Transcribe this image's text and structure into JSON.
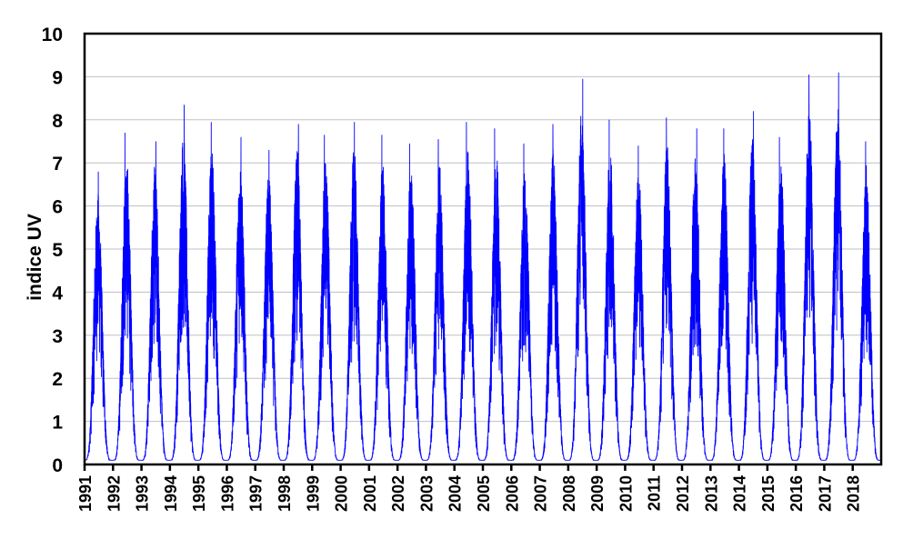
{
  "chart_data": {
    "type": "line",
    "title": "",
    "xlabel": "",
    "ylabel": "indice UV",
    "ylim": [
      0,
      10
    ],
    "xlim": [
      1991,
      2019
    ],
    "grid": true,
    "legend": "none",
    "yticks": [
      "0",
      "1",
      "2",
      "3",
      "4",
      "5",
      "6",
      "7",
      "8",
      "9",
      "10"
    ],
    "xticks": [
      "1991",
      "1992",
      "1993",
      "1994",
      "1995",
      "1996",
      "1997",
      "1998",
      "1999",
      "2000",
      "2001",
      "2002",
      "2003",
      "2004",
      "2005",
      "2006",
      "2007",
      "2008",
      "2009",
      "2010",
      "2011",
      "2012",
      "2013",
      "2014",
      "2015",
      "2016",
      "2017",
      "2018"
    ],
    "series": [
      {
        "name": "indice UV (daily)",
        "color": "#0000ff",
        "annual_peak_years": [
          1991,
          1992,
          1993,
          1994,
          1995,
          1996,
          1997,
          1998,
          1999,
          2000,
          2001,
          2002,
          2003,
          2004,
          2005,
          2006,
          2007,
          2008,
          2009,
          2010,
          2011,
          2012,
          2013,
          2014,
          2015,
          2016,
          2017,
          2018
        ],
        "annual_peak_values": [
          6.8,
          7.7,
          7.5,
          8.35,
          7.95,
          7.6,
          7.3,
          7.9,
          7.65,
          7.95,
          7.65,
          7.45,
          7.55,
          7.95,
          7.8,
          7.45,
          7.9,
          8.95,
          8.0,
          7.4,
          8.05,
          7.8,
          7.8,
          8.2,
          7.6,
          9.05,
          9.1,
          7.5
        ],
        "winter_min": 0.1
      }
    ]
  }
}
